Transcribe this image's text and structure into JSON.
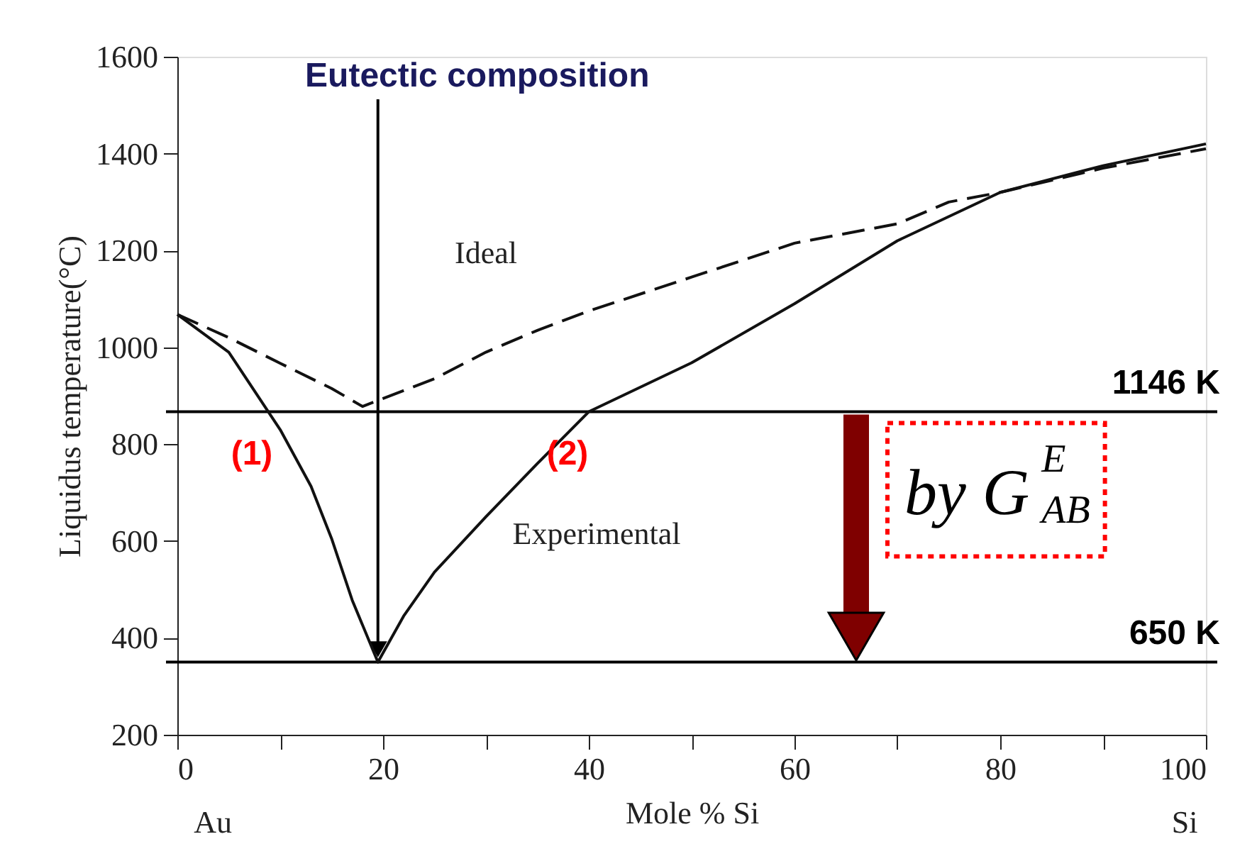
{
  "chart_data": {
    "type": "line",
    "xlabel": "Mole % Si",
    "ylabel": "Liquidus temperature(°C)",
    "xlim": [
      0,
      100
    ],
    "ylim": [
      200,
      1600
    ],
    "xticks": [
      0,
      {
        "value": 10,
        "label": null
      },
      20,
      {
        "value": 30,
        "label": null
      },
      40,
      {
        "value": 50,
        "label": null
      },
      60,
      {
        "value": 70,
        "label": null
      },
      80,
      {
        "value": 90,
        "label": null
      },
      100
    ],
    "yticks": [
      200,
      400,
      600,
      800,
      1000,
      1200,
      1400,
      1600
    ],
    "grid": false,
    "legend": false,
    "series": [
      {
        "name": "Ideal",
        "color": "#111111",
        "line_style": "dashed",
        "x": [
          0,
          5,
          10,
          15,
          18,
          25,
          30,
          35,
          40,
          50,
          60,
          70,
          75,
          80,
          90,
          100
        ],
        "values": [
          1068,
          1020,
          967,
          915,
          878,
          935,
          990,
          1035,
          1075,
          1145,
          1215,
          1255,
          1300,
          1320,
          1370,
          1410
        ]
      },
      {
        "name": "Experimental",
        "color": "#111111",
        "line_style": "solid",
        "x": [
          0,
          5,
          10,
          13,
          15,
          17,
          19.5,
          22,
          25,
          30,
          35,
          40,
          50,
          60,
          70,
          80,
          90,
          100
        ],
        "values": [
          1068,
          990,
          830,
          713,
          605,
          478,
          350,
          445,
          536,
          650,
          760,
          867,
          968,
          1090,
          1220,
          1320,
          1375,
          1420
        ]
      }
    ],
    "ref_lines": [
      {
        "axis": "y",
        "value": 867,
        "label": "1146 K",
        "color": "#000000"
      },
      {
        "axis": "y",
        "value": 350,
        "label": "650 K",
        "color": "#000000"
      },
      {
        "axis": "x",
        "value": 19.5,
        "label": "Eutectic composition",
        "color": "#000000"
      }
    ],
    "annotations": [
      {
        "text": "(1)",
        "x": 10,
        "y": 867
      },
      {
        "text": "(2)",
        "x": 40,
        "y": 867
      },
      {
        "text": "by  G$^{E}$$_{AB}$",
        "x": 66,
        "y": 867
      },
      "Au",
      "Si"
    ]
  }
}
